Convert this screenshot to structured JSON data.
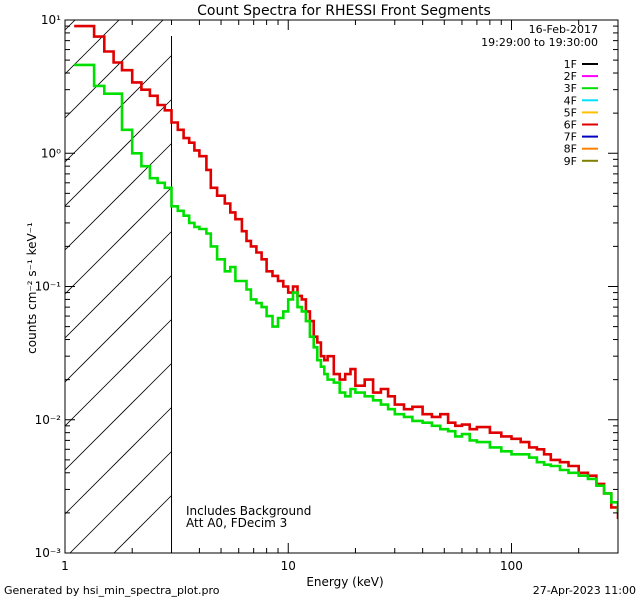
{
  "chart_data": {
    "type": "line",
    "title": "Count Spectra for RHESSI Front Segments",
    "xlabel": "Energy (keV)",
    "ylabel": "counts cm⁻² s⁻¹ keV⁻¹",
    "xscale": "log",
    "yscale": "log",
    "xlim": [
      1,
      300
    ],
    "ylim": [
      0.001,
      10
    ],
    "x_ticks": [
      {
        "value": 1,
        "label": "1"
      },
      {
        "value": 10,
        "label": "10"
      },
      {
        "value": 100,
        "label": "100"
      }
    ],
    "y_ticks": [
      {
        "value": 0.001,
        "label": "10⁻³"
      },
      {
        "value": 0.01,
        "label": "10⁻²"
      },
      {
        "value": 0.1,
        "label": "10⁻¹"
      },
      {
        "value": 1,
        "label": "10⁰"
      },
      {
        "value": 10,
        "label": "10¹"
      }
    ],
    "date": "16-Feb-2017",
    "time_range": "19:29:00 to 19:30:00",
    "legend": [
      {
        "label": "1F",
        "color": "#000000"
      },
      {
        "label": "2F",
        "color": "#ff00ff"
      },
      {
        "label": "3F",
        "color": "#00e000"
      },
      {
        "label": "4F",
        "color": "#00e0ff"
      },
      {
        "label": "5F",
        "color": "#ffc000"
      },
      {
        "label": "6F",
        "color": "#e00000"
      },
      {
        "label": "7F",
        "color": "#0000c0"
      },
      {
        "label": "8F",
        "color": "#ff8000"
      },
      {
        "label": "9F",
        "color": "#808000"
      }
    ],
    "hatched_region_keV": [
      1,
      3
    ],
    "annotations": [
      "Includes Background",
      "Att A0, FDecim 3"
    ],
    "series": [
      {
        "name": "6F",
        "color": "#e00000",
        "points": [
          [
            1.1,
            9.0
          ],
          [
            1.25,
            9.0
          ],
          [
            1.35,
            7.5
          ],
          [
            1.5,
            5.8
          ],
          [
            1.65,
            4.8
          ],
          [
            1.8,
            4.2
          ],
          [
            2.0,
            3.4
          ],
          [
            2.2,
            3.0
          ],
          [
            2.4,
            2.7
          ],
          [
            2.6,
            2.3
          ],
          [
            2.8,
            2.1
          ],
          [
            3.0,
            1.7
          ],
          [
            3.2,
            1.5
          ],
          [
            3.4,
            1.3
          ],
          [
            3.6,
            1.2
          ],
          [
            3.8,
            1.05
          ],
          [
            4.0,
            0.95
          ],
          [
            4.3,
            0.75
          ],
          [
            4.5,
            0.55
          ],
          [
            4.8,
            0.48
          ],
          [
            5.2,
            0.42
          ],
          [
            5.5,
            0.36
          ],
          [
            5.8,
            0.32
          ],
          [
            6.2,
            0.26
          ],
          [
            6.5,
            0.22
          ],
          [
            6.8,
            0.2
          ],
          [
            7.2,
            0.18
          ],
          [
            7.6,
            0.16
          ],
          [
            8.0,
            0.13
          ],
          [
            8.5,
            0.12
          ],
          [
            9.0,
            0.11
          ],
          [
            9.5,
            0.1
          ],
          [
            10.0,
            0.09
          ],
          [
            10.5,
            0.1
          ],
          [
            11.0,
            0.085
          ],
          [
            11.5,
            0.08
          ],
          [
            12.0,
            0.065
          ],
          [
            12.5,
            0.055
          ],
          [
            13.0,
            0.042
          ],
          [
            13.5,
            0.038
          ],
          [
            14.0,
            0.03
          ],
          [
            14.5,
            0.028
          ],
          [
            15.0,
            0.03
          ],
          [
            16.0,
            0.022
          ],
          [
            17.0,
            0.02
          ],
          [
            18.0,
            0.022
          ],
          [
            19.0,
            0.024
          ],
          [
            20.0,
            0.018
          ],
          [
            22.0,
            0.02
          ],
          [
            24.0,
            0.016
          ],
          [
            26.0,
            0.017
          ],
          [
            28.0,
            0.015
          ],
          [
            30.0,
            0.013
          ],
          [
            33.0,
            0.012
          ],
          [
            36.0,
            0.0125
          ],
          [
            40.0,
            0.011
          ],
          [
            44.0,
            0.0105
          ],
          [
            48.0,
            0.011
          ],
          [
            52.0,
            0.0095
          ],
          [
            56.0,
            0.009
          ],
          [
            60.0,
            0.0092
          ],
          [
            65.0,
            0.0085
          ],
          [
            70.0,
            0.0088
          ],
          [
            80.0,
            0.008
          ],
          [
            90.0,
            0.0075
          ],
          [
            100.0,
            0.0072
          ],
          [
            110.0,
            0.0068
          ],
          [
            120.0,
            0.0062
          ],
          [
            130.0,
            0.006
          ],
          [
            140.0,
            0.0055
          ],
          [
            150.0,
            0.005
          ],
          [
            165.0,
            0.0048
          ],
          [
            180.0,
            0.0045
          ],
          [
            200.0,
            0.004
          ],
          [
            220.0,
            0.0038
          ],
          [
            240.0,
            0.0033
          ],
          [
            260.0,
            0.0028
          ],
          [
            280.0,
            0.0022
          ],
          [
            300.0,
            0.0018
          ]
        ]
      },
      {
        "name": "3F",
        "color": "#00e000",
        "points": [
          [
            1.1,
            4.6
          ],
          [
            1.25,
            4.6
          ],
          [
            1.35,
            3.2
          ],
          [
            1.5,
            2.8
          ],
          [
            1.65,
            2.8
          ],
          [
            1.8,
            1.5
          ],
          [
            2.0,
            1.0
          ],
          [
            2.2,
            0.8
          ],
          [
            2.4,
            0.65
          ],
          [
            2.6,
            0.6
          ],
          [
            2.8,
            0.55
          ],
          [
            3.0,
            0.4
          ],
          [
            3.2,
            0.37
          ],
          [
            3.4,
            0.34
          ],
          [
            3.6,
            0.3
          ],
          [
            3.8,
            0.28
          ],
          [
            4.0,
            0.27
          ],
          [
            4.3,
            0.25
          ],
          [
            4.5,
            0.2
          ],
          [
            4.8,
            0.16
          ],
          [
            5.2,
            0.13
          ],
          [
            5.5,
            0.14
          ],
          [
            5.8,
            0.11
          ],
          [
            6.2,
            0.11
          ],
          [
            6.5,
            0.095
          ],
          [
            6.8,
            0.08
          ],
          [
            7.2,
            0.075
          ],
          [
            7.6,
            0.07
          ],
          [
            8.0,
            0.06
          ],
          [
            8.5,
            0.05
          ],
          [
            9.0,
            0.058
          ],
          [
            9.5,
            0.065
          ],
          [
            10.0,
            0.08
          ],
          [
            10.5,
            0.09
          ],
          [
            11.0,
            0.07
          ],
          [
            11.5,
            0.065
          ],
          [
            12.0,
            0.055
          ],
          [
            12.5,
            0.042
          ],
          [
            13.0,
            0.035
          ],
          [
            13.5,
            0.028
          ],
          [
            14.0,
            0.025
          ],
          [
            14.5,
            0.022
          ],
          [
            15.0,
            0.02
          ],
          [
            16.0,
            0.019
          ],
          [
            17.0,
            0.016
          ],
          [
            18.0,
            0.015
          ],
          [
            19.0,
            0.017
          ],
          [
            20.0,
            0.016
          ],
          [
            22.0,
            0.015
          ],
          [
            24.0,
            0.014
          ],
          [
            26.0,
            0.013
          ],
          [
            28.0,
            0.012
          ],
          [
            30.0,
            0.011
          ],
          [
            33.0,
            0.0105
          ],
          [
            36.0,
            0.0098
          ],
          [
            40.0,
            0.0095
          ],
          [
            44.0,
            0.009
          ],
          [
            48.0,
            0.0085
          ],
          [
            52.0,
            0.0082
          ],
          [
            56.0,
            0.0075
          ],
          [
            60.0,
            0.0078
          ],
          [
            65.0,
            0.007
          ],
          [
            70.0,
            0.0068
          ],
          [
            80.0,
            0.0062
          ],
          [
            90.0,
            0.0058
          ],
          [
            100.0,
            0.0055
          ],
          [
            110.0,
            0.0055
          ],
          [
            120.0,
            0.0052
          ],
          [
            130.0,
            0.0048
          ],
          [
            140.0,
            0.0046
          ],
          [
            150.0,
            0.0045
          ],
          [
            165.0,
            0.0042
          ],
          [
            180.0,
            0.004
          ],
          [
            200.0,
            0.0038
          ],
          [
            220.0,
            0.0036
          ],
          [
            240.0,
            0.0032
          ],
          [
            260.0,
            0.0028
          ],
          [
            280.0,
            0.0024
          ],
          [
            300.0,
            0.002
          ]
        ]
      }
    ]
  },
  "footer": {
    "left": "Generated by hsi_min_spectra_plot.pro",
    "right": "27-Apr-2023 11:00"
  }
}
